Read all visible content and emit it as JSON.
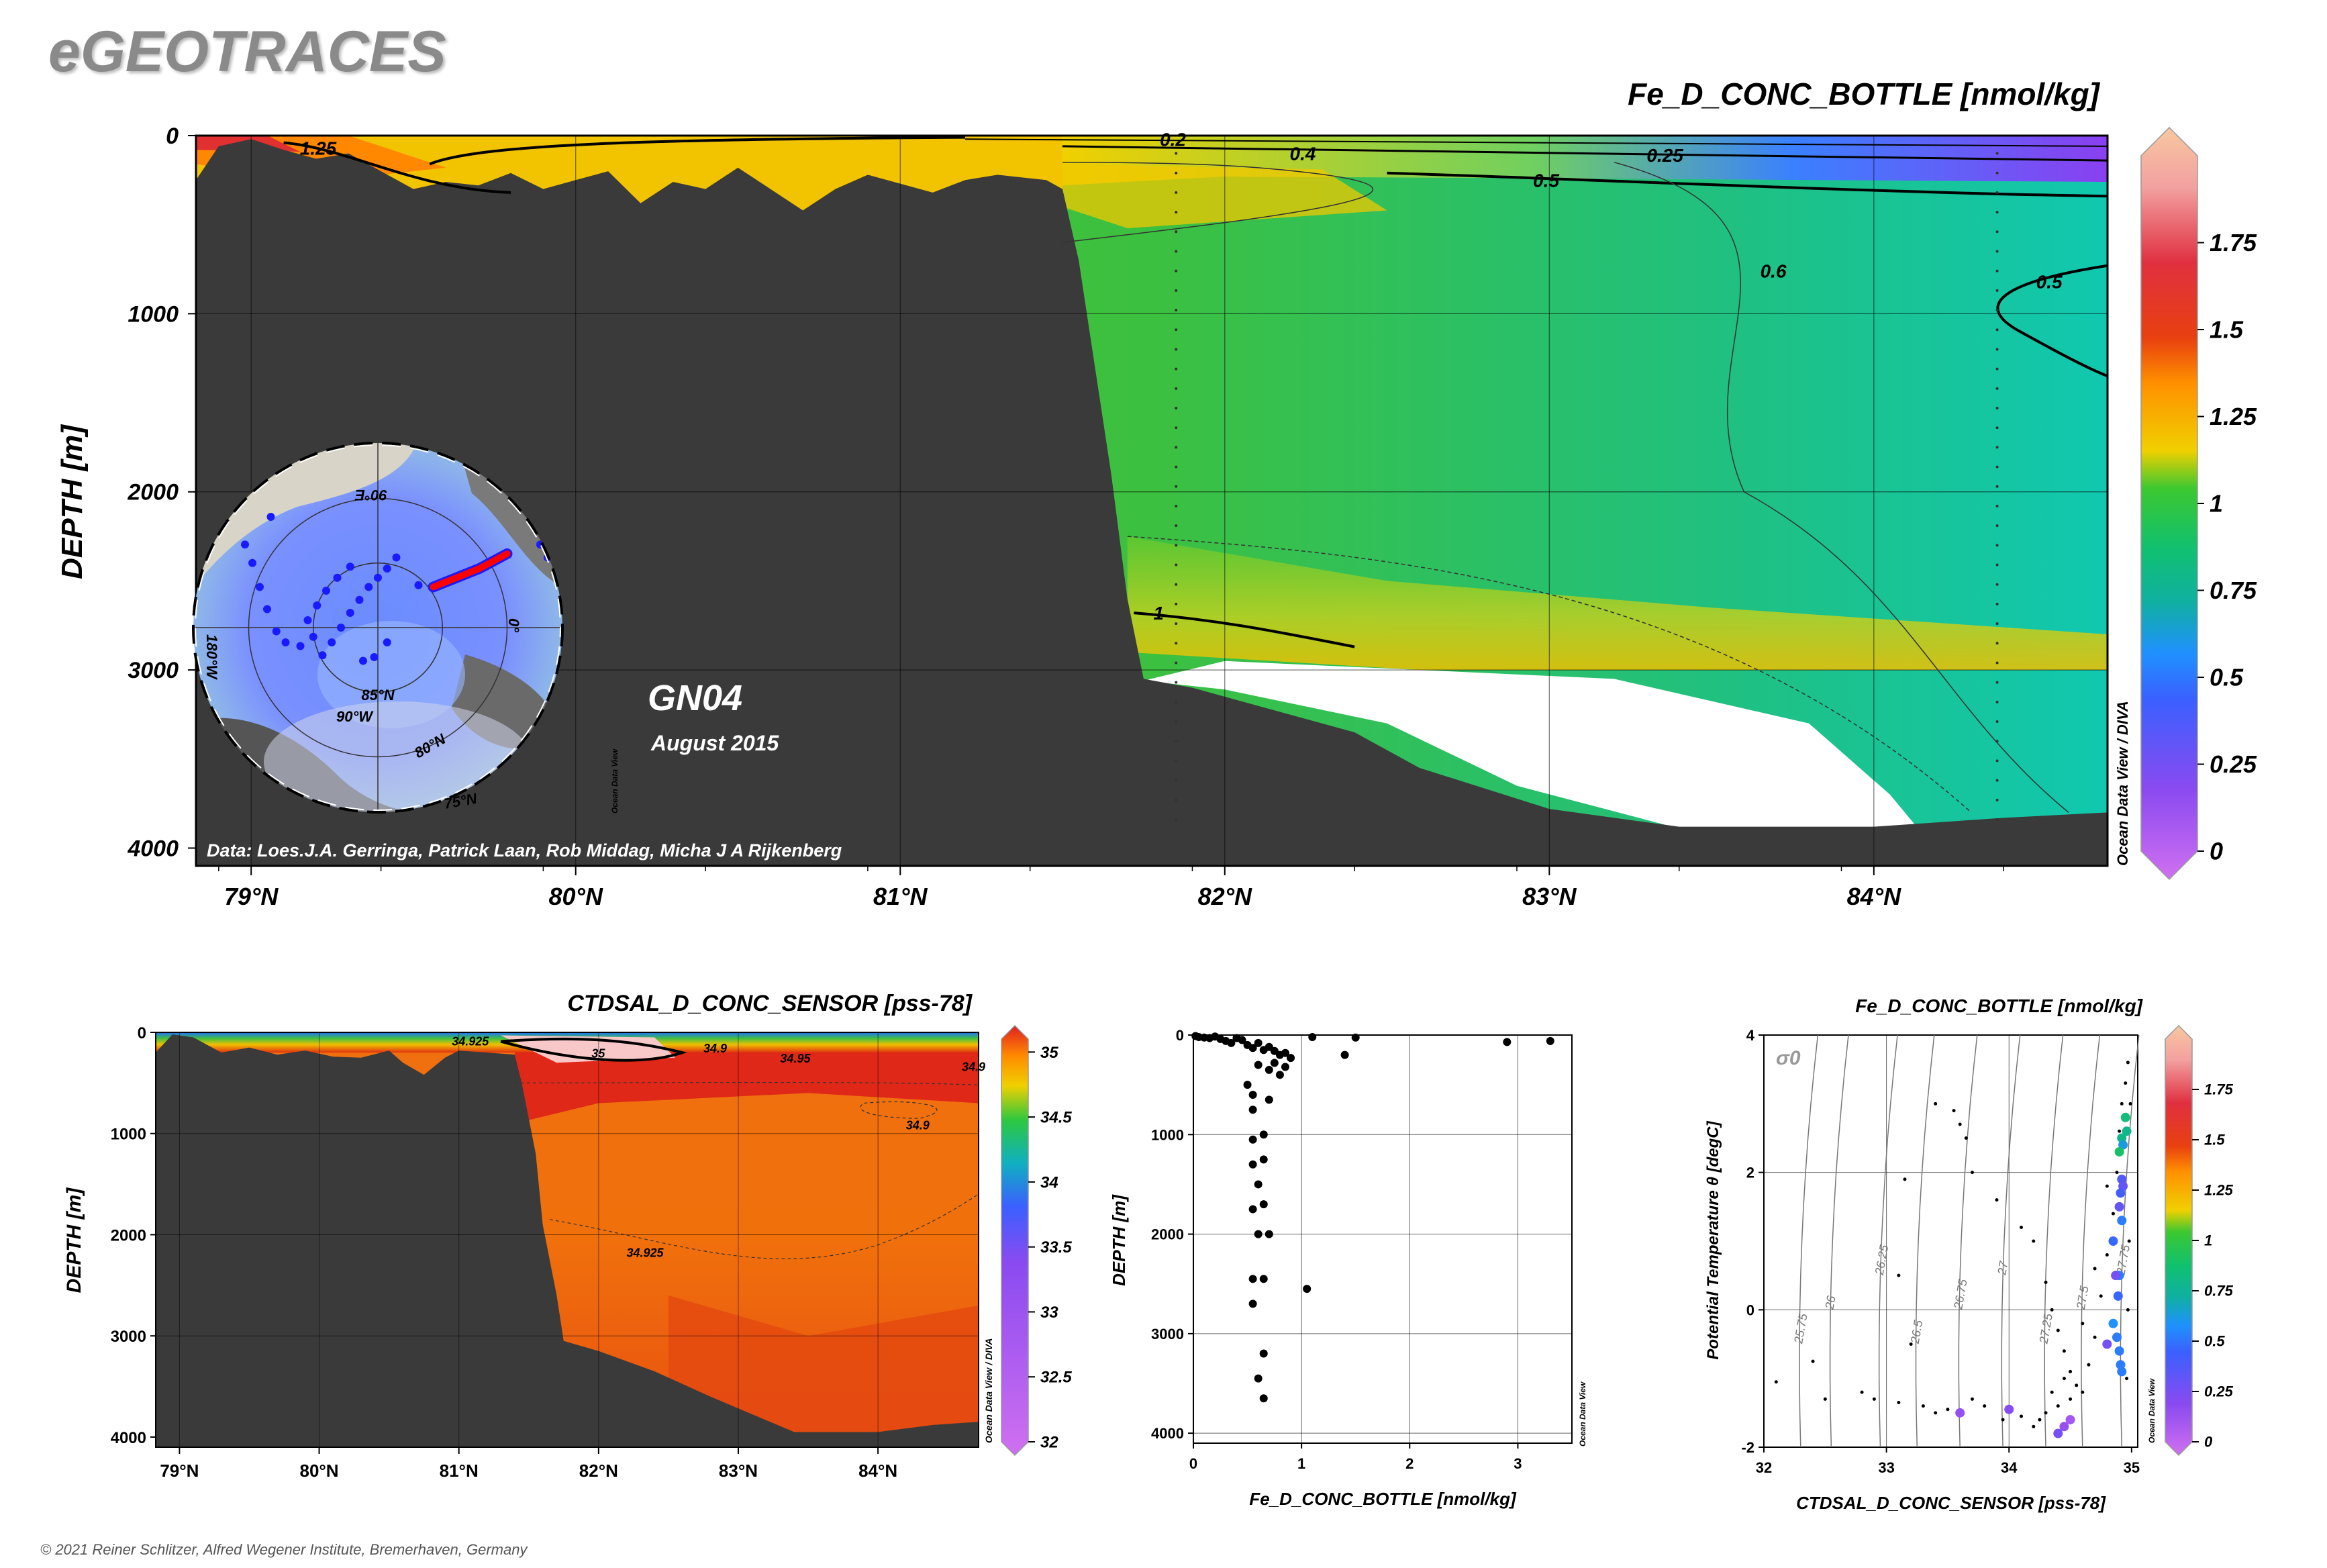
{
  "brand": {
    "title": "eGEOTRACES"
  },
  "copyright": "© 2021 Reiner Schlitzer, Alfred Wegener Institute, Bremerhaven, Germany",
  "colors": {
    "land": "#3a3a3a",
    "ocean_accent": "#ff0000",
    "station_dot": "#1a1aff",
    "bg": "#ffffff"
  },
  "chart_data": [
    {
      "id": "main-section",
      "type": "heatmap",
      "title": "Fe_D_CONC_BOTTLE [nmol/kg]",
      "ylabel": "DEPTH [m]",
      "xlim": [
        78.83,
        84.72
      ],
      "ylim": [
        4100,
        0
      ],
      "x_ticks": [
        79,
        80,
        81,
        82,
        83,
        84
      ],
      "x_tick_labels": [
        "79°N",
        "80°N",
        "81°N",
        "82°N",
        "83°N",
        "84°N"
      ],
      "y_ticks": [
        0,
        1000,
        2000,
        3000,
        4000
      ],
      "y_tick_labels": [
        "0",
        "1000",
        "2000",
        "3000",
        "4000"
      ],
      "colorbar": {
        "range": [
          0,
          2
        ],
        "ticks": [
          0,
          0.25,
          0.5,
          0.75,
          1,
          1.25,
          1.5,
          1.75
        ],
        "tick_labels": [
          "0",
          "0.25",
          "0.5",
          "0.75",
          "1",
          "1.25",
          "1.5",
          "1.75"
        ]
      },
      "contour_labels": [
        "1.25",
        "0.2",
        "0.4",
        "0.25",
        "0.5",
        "0.6",
        "0.5",
        "1"
      ],
      "inset_map": {
        "labels": [
          "90°E",
          "180°W",
          "0°",
          "85°N",
          "80°N",
          "90°W",
          "75°N"
        ],
        "stations": [
          [
            -0.55,
            -0.35
          ],
          [
            -0.4,
            -0.3
          ],
          [
            -0.2,
            -0.25
          ],
          [
            0.05,
            0.05
          ],
          [
            0.3,
            0.15
          ],
          [
            0.55,
            -0.1
          ],
          [
            0.7,
            -0.15
          ]
        ]
      },
      "section_label": "GN04",
      "date_label": "August 2015",
      "credits": "Data: Loes.J.A. Gerringa, Patrick Laan, Rob Middag, Micha J A Rijkenberg",
      "watermark": "Ocean Data View / DIVA",
      "inset_watermark": "Ocean Data View"
    },
    {
      "id": "salinity-section",
      "type": "heatmap",
      "title": "CTDSAL_D_CONC_SENSOR [pss-78]",
      "ylabel": "DEPTH [m]",
      "xlim": [
        78.83,
        84.72
      ],
      "ylim": [
        4100,
        0
      ],
      "x_ticks": [
        79,
        80,
        81,
        82,
        83,
        84
      ],
      "x_tick_labels": [
        "79°N",
        "80°N",
        "81°N",
        "82°N",
        "83°N",
        "84°N"
      ],
      "y_ticks": [
        0,
        1000,
        2000,
        3000,
        4000
      ],
      "y_tick_labels": [
        "0",
        "1000",
        "2000",
        "3000",
        "4000"
      ],
      "colorbar": {
        "range": [
          32,
          35.1
        ],
        "ticks": [
          32,
          32.5,
          33,
          33.5,
          34,
          34.5,
          35
        ],
        "tick_labels": [
          "32",
          "32.5",
          "33",
          "33.5",
          "34",
          "34.5",
          "35"
        ]
      },
      "contour_labels": [
        "34.925",
        "35",
        "34.9",
        "34.95",
        "34.9",
        "34.9",
        "34.925"
      ],
      "watermark": "Ocean Data View / DIVA"
    },
    {
      "id": "fe-profile",
      "type": "scatter",
      "xlabel": "Fe_D_CONC_BOTTLE [nmol/kg]",
      "ylabel": "DEPTH [m]",
      "xlim": [
        0,
        3.5
      ],
      "ylim": [
        4100,
        0
      ],
      "x_ticks": [
        0,
        1,
        2,
        3
      ],
      "x_tick_labels": [
        "0",
        "1",
        "2",
        "3"
      ],
      "y_ticks": [
        0,
        1000,
        2000,
        3000,
        4000
      ],
      "y_tick_labels": [
        "0",
        "1000",
        "2000",
        "3000",
        "4000"
      ],
      "points": [
        [
          0.02,
          10
        ],
        [
          0.05,
          20
        ],
        [
          0.1,
          25
        ],
        [
          0.15,
          30
        ],
        [
          0.2,
          15
        ],
        [
          0.25,
          40
        ],
        [
          0.3,
          60
        ],
        [
          0.35,
          80
        ],
        [
          0.4,
          30
        ],
        [
          0.45,
          50
        ],
        [
          0.5,
          100
        ],
        [
          0.55,
          130
        ],
        [
          0.6,
          80
        ],
        [
          0.65,
          150
        ],
        [
          0.7,
          120
        ],
        [
          0.75,
          160
        ],
        [
          0.8,
          200
        ],
        [
          0.85,
          180
        ],
        [
          0.9,
          230
        ],
        [
          0.6,
          300
        ],
        [
          0.7,
          350
        ],
        [
          0.75,
          280
        ],
        [
          0.8,
          400
        ],
        [
          0.85,
          320
        ],
        [
          0.5,
          500
        ],
        [
          0.55,
          600
        ],
        [
          0.7,
          650
        ],
        [
          1.1,
          20
        ],
        [
          1.5,
          25
        ],
        [
          1.4,
          200
        ],
        [
          2.9,
          70
        ],
        [
          3.3,
          60
        ],
        [
          0.55,
          750
        ],
        [
          0.65,
          1000
        ],
        [
          0.55,
          1050
        ],
        [
          0.65,
          1250
        ],
        [
          0.55,
          1300
        ],
        [
          0.6,
          1500
        ],
        [
          0.65,
          1700
        ],
        [
          0.55,
          1750
        ],
        [
          0.6,
          2000
        ],
        [
          0.7,
          2000
        ],
        [
          0.55,
          2450
        ],
        [
          0.65,
          2450
        ],
        [
          1.05,
          2550
        ],
        [
          0.55,
          2700
        ],
        [
          0.65,
          3200
        ],
        [
          0.6,
          3450
        ],
        [
          0.65,
          3650
        ]
      ],
      "watermark": "Ocean Data View"
    },
    {
      "id": "ts-diagram",
      "type": "scatter",
      "title": "Fe_D_CONC_BOTTLE [nmol/kg]",
      "xlabel": "CTDSAL_D_CONC_SENSOR [pss-78]",
      "ylabel": "Potential Temperature θ [degC]",
      "xlim": [
        32,
        35.05
      ],
      "ylim": [
        -2,
        4
      ],
      "x_ticks": [
        32,
        33,
        34,
        35
      ],
      "x_tick_labels": [
        "32",
        "33",
        "34",
        "35"
      ],
      "y_ticks": [
        -2,
        0,
        2,
        4
      ],
      "y_tick_labels": [
        "-2",
        "0",
        "2",
        "4"
      ],
      "sigma_label": "σ0",
      "isopycnal_labels": [
        "25.75",
        "26",
        "26.25",
        "26.5",
        "26.75",
        "27",
        "27.25",
        "27.5",
        "27.75"
      ],
      "colorbar": {
        "range": [
          0,
          2
        ],
        "ticks": [
          0,
          0.25,
          0.5,
          0.75,
          1,
          1.25,
          1.5,
          1.75
        ],
        "tick_labels": [
          "0",
          "0.25",
          "0.5",
          "0.75",
          "1",
          "1.25",
          "1.5",
          "1.75"
        ]
      },
      "colored_points": [
        [
          34.95,
          2.8,
          0.85
        ],
        [
          34.96,
          2.6,
          0.8
        ],
        [
          34.92,
          2.5,
          0.8
        ],
        [
          34.93,
          2.4,
          0.65
        ],
        [
          34.9,
          2.3,
          0.9
        ],
        [
          34.92,
          1.9,
          0.4
        ],
        [
          34.93,
          1.8,
          0.35
        ],
        [
          34.91,
          1.7,
          0.45
        ],
        [
          34.9,
          1.5,
          0.35
        ],
        [
          34.92,
          1.3,
          0.55
        ],
        [
          34.85,
          1.0,
          0.5
        ],
        [
          34.9,
          0.5,
          0.55
        ],
        [
          34.89,
          0.2,
          0.5
        ],
        [
          34.85,
          -0.2,
          0.6
        ],
        [
          34.88,
          -0.4,
          0.55
        ],
        [
          34.9,
          -0.6,
          0.55
        ],
        [
          34.91,
          -0.8,
          0.55
        ],
        [
          34.92,
          -0.9,
          0.55
        ],
        [
          34.8,
          -0.5,
          0.3
        ],
        [
          34.87,
          0.5,
          0.3
        ],
        [
          33.6,
          -1.5,
          0.2
        ],
        [
          34.0,
          -1.45,
          0.25
        ],
        [
          34.45,
          -1.7,
          0.2
        ],
        [
          34.4,
          -1.8,
          0.3
        ],
        [
          34.5,
          -1.6,
          0.15
        ]
      ],
      "black_points": [
        [
          32.1,
          -1.05
        ],
        [
          32.4,
          -0.75
        ],
        [
          32.5,
          -1.3
        ],
        [
          32.8,
          -1.2
        ],
        [
          32.9,
          -1.3
        ],
        [
          33.1,
          -1.35
        ],
        [
          33.3,
          -1.4
        ],
        [
          33.4,
          -1.5
        ],
        [
          33.5,
          -1.45
        ],
        [
          33.8,
          -1.4
        ],
        [
          33.7,
          -1.3
        ],
        [
          33.2,
          -0.5
        ],
        [
          33.1,
          0.5
        ],
        [
          33.15,
          1.9
        ],
        [
          33.4,
          3.0
        ],
        [
          33.55,
          2.9
        ],
        [
          33.6,
          2.7
        ],
        [
          33.65,
          2.5
        ],
        [
          33.7,
          2.0
        ],
        [
          33.9,
          1.6
        ],
        [
          34.1,
          1.2
        ],
        [
          34.2,
          1.0
        ],
        [
          34.3,
          0.4
        ],
        [
          34.35,
          0.0
        ],
        [
          34.4,
          -0.3
        ],
        [
          34.45,
          -0.6
        ],
        [
          34.5,
          -0.9
        ],
        [
          34.55,
          -1.1
        ],
        [
          34.6,
          -1.2
        ],
        [
          34.65,
          -0.8
        ],
        [
          34.7,
          -0.4
        ],
        [
          34.75,
          0.2
        ],
        [
          34.8,
          0.8
        ],
        [
          34.85,
          1.4
        ],
        [
          34.88,
          2.0
        ],
        [
          34.9,
          2.6
        ],
        [
          34.92,
          3.0
        ],
        [
          34.95,
          3.3
        ],
        [
          34.97,
          3.6
        ],
        [
          34.99,
          3.0
        ],
        [
          34.98,
          1.0
        ],
        [
          34.97,
          0.0
        ],
        [
          34.96,
          -1.0
        ],
        [
          34.4,
          -1.4
        ],
        [
          34.3,
          -1.5
        ],
        [
          34.25,
          -1.6
        ],
        [
          34.35,
          -1.2
        ],
        [
          34.45,
          -1.0
        ],
        [
          34.5,
          -1.3
        ],
        [
          34.2,
          -1.7
        ],
        [
          33.95,
          -1.6
        ],
        [
          34.1,
          -1.55
        ],
        [
          34.6,
          -0.2
        ],
        [
          34.7,
          0.6
        ],
        [
          34.8,
          1.8
        ]
      ],
      "watermark": "Ocean Data View"
    }
  ]
}
